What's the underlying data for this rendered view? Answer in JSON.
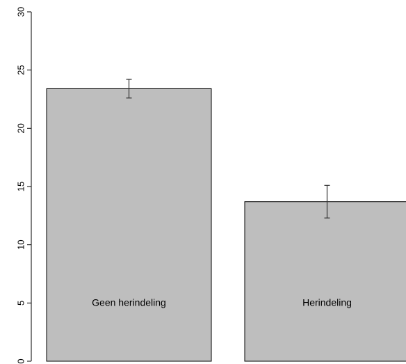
{
  "chart_data": {
    "type": "bar",
    "categories": [
      "Geen herindeling",
      "Herindeling"
    ],
    "values": [
      23.4,
      13.7
    ],
    "error_bars": [
      {
        "low": 22.6,
        "high": 24.2
      },
      {
        "low": 12.3,
        "high": 15.1
      }
    ],
    "ylim": [
      0,
      30
    ],
    "yticks": [
      0,
      5,
      10,
      15,
      20,
      25,
      30
    ],
    "title": "",
    "xlabel": "",
    "ylabel": "",
    "grid": false,
    "bar_color": "#bebebe",
    "bar_border_color": "#000000",
    "labels_inside_bars": true
  }
}
